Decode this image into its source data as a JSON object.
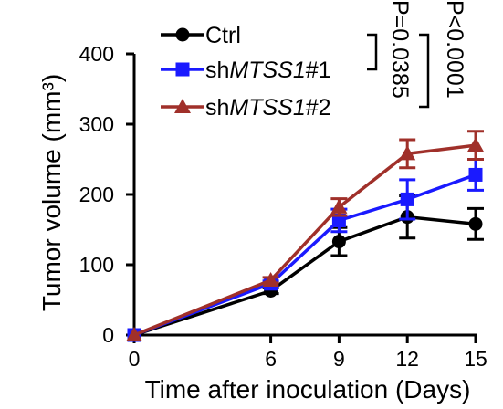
{
  "chart_data": {
    "type": "line",
    "xlabel": "Time after inoculation (Days)",
    "ylabel": "Tumor volume (mm³)",
    "x": [
      0,
      6,
      9,
      12,
      15
    ],
    "xlim": [
      0,
      15
    ],
    "ylim": [
      0,
      400
    ],
    "xticks": [
      "0",
      "6",
      "9",
      "12",
      "15"
    ],
    "yticks": [
      "0",
      "100",
      "200",
      "300",
      "400"
    ],
    "legend_position": "top-left",
    "series": [
      {
        "name": "Ctrl",
        "legend_parts": [
          {
            "text": "Ctrl",
            "italic": false
          }
        ],
        "color": "#000000",
        "marker": "circle",
        "values": [
          0,
          63,
          133,
          168,
          158
        ],
        "errors": [
          0,
          4,
          20,
          30,
          22
        ]
      },
      {
        "name": "shMTSS1#1",
        "legend_parts": [
          {
            "text": "sh",
            "italic": false
          },
          {
            "text": "MTSS1",
            "italic": true
          },
          {
            "text": "#1",
            "italic": false
          }
        ],
        "color": "#1a1aff",
        "marker": "square",
        "values": [
          0,
          73,
          163,
          193,
          228
        ],
        "errors": [
          0,
          4,
          16,
          28,
          22
        ]
      },
      {
        "name": "shMTSS1#2",
        "legend_parts": [
          {
            "text": "sh",
            "italic": false
          },
          {
            "text": "MTSS1",
            "italic": true
          },
          {
            "text": "#2",
            "italic": false
          }
        ],
        "color": "#a0302a",
        "marker": "triangle",
        "values": [
          0,
          78,
          182,
          258,
          270
        ],
        "errors": [
          0,
          4,
          12,
          20,
          20
        ]
      }
    ],
    "annotations": [
      {
        "text": "P=0.0385",
        "bracket": "Ctrl vs shMTSS1#1"
      },
      {
        "text": "P<0.0001",
        "bracket": "Ctrl vs shMTSS1#2"
      }
    ]
  }
}
